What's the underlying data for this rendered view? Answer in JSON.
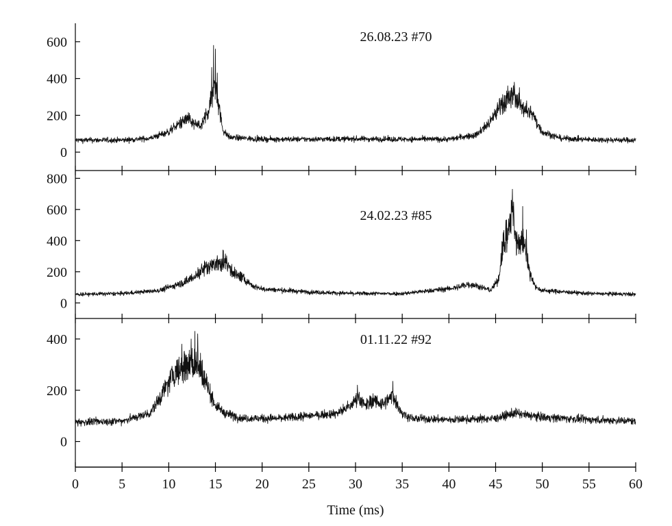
{
  "chart_data": {
    "type": "line",
    "xlabel": "Time (ms)",
    "xlim": [
      0,
      60
    ],
    "x_ticks": [
      0,
      5,
      10,
      15,
      20,
      25,
      30,
      35,
      40,
      45,
      50,
      55,
      60
    ],
    "grid": false,
    "legend": "none",
    "panels": [
      {
        "label": "26.08.23 #70",
        "ylim": [
          -100,
          700
        ],
        "y_ticks": [
          0,
          200,
          400,
          600
        ],
        "baseline": 70,
        "noise": 14,
        "keypoints": [
          [
            0,
            65
          ],
          [
            5,
            65
          ],
          [
            8,
            75
          ],
          [
            10,
            110
          ],
          [
            11,
            150
          ],
          [
            12,
            180
          ],
          [
            12.8,
            150
          ],
          [
            13.5,
            140
          ],
          [
            14.4,
            250
          ],
          [
            14.9,
            380
          ],
          [
            15.2,
            300
          ],
          [
            15.8,
            120
          ],
          [
            16.5,
            80
          ],
          [
            20,
            70
          ],
          [
            25,
            70
          ],
          [
            30,
            72
          ],
          [
            35,
            70
          ],
          [
            40,
            70
          ],
          [
            43,
            95
          ],
          [
            44.5,
            170
          ],
          [
            45.5,
            260
          ],
          [
            47,
            310
          ],
          [
            48,
            240
          ],
          [
            49,
            200
          ],
          [
            50,
            110
          ],
          [
            52,
            75
          ],
          [
            55,
            68
          ],
          [
            60,
            65
          ]
        ],
        "spikes": [
          [
            14.8,
            580
          ],
          [
            15.0,
            560
          ],
          [
            14.6,
            460
          ],
          [
            15.2,
            430
          ],
          [
            47.0,
            380
          ],
          [
            46.3,
            360
          ]
        ]
      },
      {
        "label": "24.02.23 #85",
        "ylim": [
          -100,
          850
        ],
        "y_ticks": [
          0,
          200,
          400,
          600,
          800
        ],
        "baseline": 60,
        "noise": 12,
        "keypoints": [
          [
            0,
            55
          ],
          [
            5,
            60
          ],
          [
            9,
            80
          ],
          [
            12,
            140
          ],
          [
            14,
            230
          ],
          [
            15,
            250
          ],
          [
            16,
            270
          ],
          [
            17,
            190
          ],
          [
            18,
            160
          ],
          [
            19,
            110
          ],
          [
            20,
            90
          ],
          [
            25,
            70
          ],
          [
            30,
            60
          ],
          [
            35,
            60
          ],
          [
            39,
            85
          ],
          [
            41,
            100
          ],
          [
            42,
            120
          ],
          [
            43,
            110
          ],
          [
            44.5,
            80
          ],
          [
            45.3,
            150
          ],
          [
            45.8,
            380
          ],
          [
            46.3,
            450
          ],
          [
            46.8,
            600
          ],
          [
            47.2,
            380
          ],
          [
            47.6,
            380
          ],
          [
            48.1,
            420
          ],
          [
            48.6,
            200
          ],
          [
            49.3,
            100
          ],
          [
            50,
            80
          ],
          [
            55,
            60
          ],
          [
            60,
            55
          ]
        ],
        "spikes": [
          [
            46.8,
            730
          ],
          [
            47.9,
            620
          ],
          [
            48.3,
            470
          ],
          [
            15.8,
            340
          ]
        ]
      },
      {
        "label": "01.11.22 #92",
        "ylim": [
          -100,
          480
        ],
        "y_ticks": [
          0,
          200,
          400
        ],
        "baseline": 80,
        "noise": 14,
        "keypoints": [
          [
            0,
            75
          ],
          [
            5,
            80
          ],
          [
            8,
            110
          ],
          [
            9.5,
            200
          ],
          [
            10.5,
            260
          ],
          [
            11.5,
            290
          ],
          [
            12.5,
            310
          ],
          [
            13.2,
            300
          ],
          [
            14,
            230
          ],
          [
            15,
            140
          ],
          [
            16,
            110
          ],
          [
            18,
            90
          ],
          [
            22,
            90
          ],
          [
            25,
            100
          ],
          [
            28,
            110
          ],
          [
            29.5,
            140
          ],
          [
            30.3,
            175
          ],
          [
            31,
            140
          ],
          [
            32,
            160
          ],
          [
            33,
            145
          ],
          [
            34,
            180
          ],
          [
            35,
            110
          ],
          [
            36,
            90
          ],
          [
            40,
            85
          ],
          [
            45,
            90
          ],
          [
            47,
            110
          ],
          [
            48,
            105
          ],
          [
            50,
            95
          ],
          [
            55,
            85
          ],
          [
            60,
            80
          ]
        ],
        "spikes": [
          [
            12.8,
            430
          ],
          [
            13.1,
            420
          ],
          [
            12.4,
            400
          ],
          [
            11.4,
            380
          ],
          [
            34.0,
            235
          ],
          [
            30.2,
            220
          ]
        ]
      }
    ]
  }
}
